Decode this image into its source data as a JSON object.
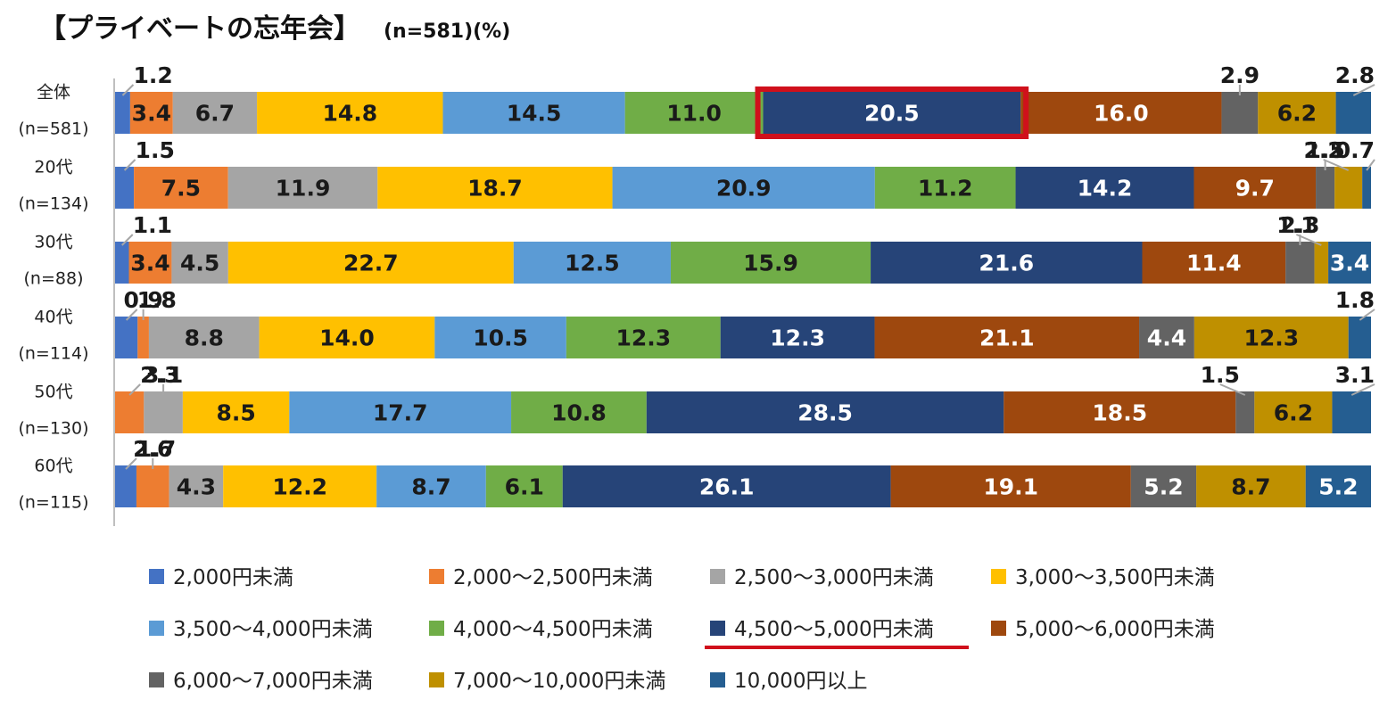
{
  "chart_data": {
    "type": "bar",
    "orientation": "horizontal-stacked-100",
    "title": "【プライベートの忘年会】",
    "subtitle": "(n=581)(%)",
    "categories": [
      {
        "label": "全体",
        "n": "(n=581)"
      },
      {
        "label": "20代",
        "n": "(n=134)"
      },
      {
        "label": "30代",
        "n": "(n=88)"
      },
      {
        "label": "40代",
        "n": "(n=114)"
      },
      {
        "label": "50代",
        "n": "(n=130)"
      },
      {
        "label": "60代",
        "n": "(n=115)"
      }
    ],
    "series": [
      {
        "name": "2,000円未満",
        "color": "#4472C4",
        "values": [
          1.2,
          1.5,
          1.1,
          1.8,
          0.0,
          1.7
        ]
      },
      {
        "name": "2,000～2,500円未満",
        "color": "#ED7D31",
        "values": [
          3.4,
          7.5,
          3.4,
          0.9,
          2.3,
          2.6
        ]
      },
      {
        "name": "2,500～3,000円未満",
        "color": "#A5A5A5",
        "values": [
          6.7,
          11.9,
          4.5,
          8.8,
          3.1,
          4.3
        ]
      },
      {
        "name": "3,000～3,500円未満",
        "color": "#FFC000",
        "values": [
          14.8,
          18.7,
          22.7,
          14.0,
          8.5,
          12.2
        ]
      },
      {
        "name": "3,500～4,000円未満",
        "color": "#5B9BD5",
        "values": [
          14.5,
          20.9,
          12.5,
          10.5,
          17.7,
          8.7
        ]
      },
      {
        "name": "4,000～4,500円未満",
        "color": "#70AD47",
        "values": [
          11.0,
          11.2,
          15.9,
          12.3,
          10.8,
          6.1
        ]
      },
      {
        "name": "4,500～5,000円未満",
        "color": "#264478",
        "values": [
          20.5,
          14.2,
          21.6,
          12.3,
          28.5,
          26.1
        ]
      },
      {
        "name": "5,000～6,000円未満",
        "color": "#9E480E",
        "values": [
          16.0,
          9.7,
          11.4,
          21.1,
          18.5,
          19.1
        ]
      },
      {
        "name": "6,000～7,000円未満",
        "color": "#636363",
        "values": [
          2.9,
          1.5,
          2.3,
          4.4,
          1.5,
          5.2
        ]
      },
      {
        "name": "7,000～10,000円未満",
        "color": "#BF9000",
        "values": [
          6.2,
          2.2,
          1.1,
          12.3,
          6.2,
          8.7
        ]
      },
      {
        "name": "10,000円以上",
        "color": "#255E91",
        "values": [
          2.8,
          0.7,
          3.4,
          1.8,
          3.1,
          5.2
        ]
      }
    ],
    "highlight": {
      "category_index": 0,
      "series_index": 6,
      "color": "#D0101B"
    },
    "legend_highlight_index": 6,
    "xlim": [
      0,
      100
    ],
    "legend_position": "bottom"
  }
}
